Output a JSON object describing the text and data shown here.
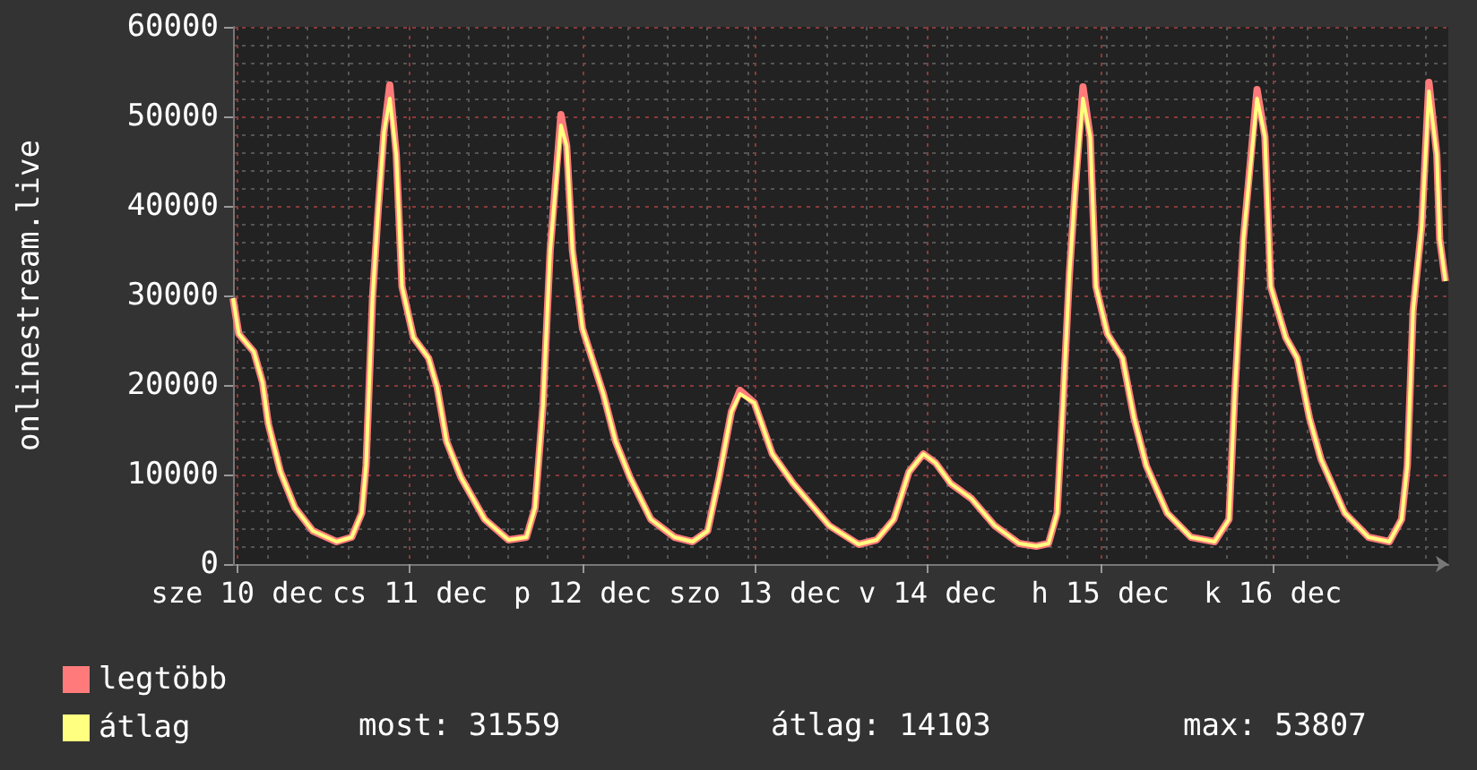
{
  "chart_data": {
    "type": "line",
    "ylabel": "onlinestream.live",
    "x": [
      "--12-09T23:24",
      "--12-10T00:12",
      "--12-10T02:18",
      "--12-10T03:30",
      "--12-10T04:18",
      "--12-10T06:00",
      "--12-10T08:00",
      "--12-10T10:30",
      "--12-10T13:48",
      "--12-10T15:54",
      "--12-10T17:18",
      "--12-10T17:54",
      "--12-10T18:48",
      "--12-10T19:36",
      "--12-10T20:24",
      "--12-10T21:12",
      "--12-10T22:06",
      "--12-10T22:54",
      "--12-11T00:30",
      "--12-11T02:36",
      "--12-11T03:48",
      "--12-11T05:06",
      "--12-11T07:06",
      "--12-11T10:24",
      "--12-11T13:42",
      "--12-11T16:12",
      "--12-11T17:24",
      "--12-11T18:30",
      "--12-11T19:30",
      "--12-11T21:00",
      "--12-11T21:48",
      "--12-11T22:36",
      "--12-12T00:00",
      "--12-12T02:54",
      "--12-12T04:36",
      "--12-12T06:36",
      "--12-12T09:30",
      "--12-12T12:48",
      "--12-12T15:18",
      "--12-12T17:24",
      "--12-12T19:00",
      "--12-12T20:42",
      "--12-12T21:54",
      "--12-12T23:54",
      "--12-13T02:24",
      "--12-13T05:18",
      "--12-13T10:18",
      "--12-13T14:24",
      "--12-13T16:54",
      "--12-13T19:18",
      "--12-13T21:24",
      "--12-13T23:24",
      "--12-14T01:06",
      "--12-14T03:12",
      "--12-14T06:06",
      "--12-14T09:18",
      "--12-14T12:42",
      "--12-14T15:06",
      "--12-14T16:48",
      "--12-14T18:00",
      "--12-14T18:48",
      "--12-14T19:42",
      "--12-14T20:30",
      "--12-14T21:36",
      "--12-14T22:36",
      "--12-14T23:24",
      "--12-15T01:00",
      "--12-15T03:06",
      "--12-15T04:42",
      "--12-15T06:24",
      "--12-15T09:18",
      "--12-15T12:36",
      "--12-15T15:54",
      "--12-15T17:54",
      "--12-15T18:42",
      "--12-15T19:54",
      "--12-15T21:48",
      "--12-15T22:54",
      "--12-15T23:42",
      "--12-16T01:48",
      "--12-16T03:24",
      "--12-16T05:06",
      "--12-16T06:42",
      "--12-16T10:00",
      "--12-16T13:18",
      "--12-16T16:12",
      "--12-16T17:54",
      "--12-16T18:42",
      "--12-16T19:30",
      "--12-16T20:42",
      "--12-16T21:42",
      "--12-16T22:48",
      "--12-16T23:12",
      "--12-17T00:00"
    ],
    "series": [
      {
        "name": "legtöbb",
        "color": "#ff7b7b",
        "values": [
          29700,
          25700,
          23700,
          20300,
          15700,
          10300,
          6300,
          3700,
          2500,
          3000,
          5700,
          11000,
          29700,
          39700,
          48300,
          53500,
          45700,
          31000,
          25300,
          23000,
          19700,
          13700,
          9700,
          5000,
          2700,
          3000,
          6300,
          17700,
          35000,
          50200,
          46700,
          35000,
          26300,
          19000,
          13700,
          9700,
          5000,
          3000,
          2500,
          3700,
          9700,
          17000,
          19400,
          18000,
          12300,
          9000,
          4300,
          2200,
          2700,
          5000,
          10300,
          12300,
          11300,
          9000,
          7300,
          4300,
          2300,
          2000,
          2300,
          5700,
          17700,
          32300,
          41700,
          53300,
          47700,
          31000,
          25700,
          23000,
          16300,
          11000,
          5700,
          3000,
          2500,
          5000,
          19000,
          36300,
          53000,
          47700,
          31000,
          25300,
          23000,
          16300,
          11700,
          5700,
          3000,
          2500,
          5000,
          11000,
          28300,
          37700,
          53800,
          45700,
          36300,
          31600
        ]
      },
      {
        "name": "átlag",
        "color": "#ffff80",
        "values": [
          29700,
          25700,
          23700,
          20300,
          15700,
          10300,
          6300,
          3700,
          2500,
          3000,
          5700,
          11000,
          29700,
          39700,
          48300,
          52000,
          45700,
          31000,
          25300,
          23000,
          19700,
          13700,
          9700,
          5000,
          2700,
          3000,
          6300,
          17700,
          35000,
          49000,
          46700,
          35000,
          26300,
          19000,
          13700,
          9700,
          5000,
          3000,
          2500,
          3700,
          9700,
          17000,
          19000,
          18000,
          12300,
          9000,
          4300,
          2200,
          2700,
          5000,
          10300,
          12300,
          11300,
          9000,
          7300,
          4300,
          2300,
          2000,
          2300,
          5700,
          17700,
          32300,
          41700,
          52000,
          47700,
          31000,
          25700,
          23000,
          16300,
          11000,
          5700,
          3000,
          2500,
          5000,
          19000,
          36300,
          52000,
          47700,
          31000,
          25300,
          23000,
          16300,
          11700,
          5700,
          3000,
          2500,
          5000,
          11000,
          28300,
          37700,
          52800,
          45700,
          36300,
          31600
        ]
      }
    ],
    "xlim": [
      "--12-09T23:24",
      "--12-17T00:24"
    ],
    "xticks": [
      {
        "value": "--12-10",
        "label": "sze 10 dec"
      },
      {
        "value": "--12-11",
        "label": "cs 11 dec"
      },
      {
        "value": "--12-12",
        "label": "p 12 dec"
      },
      {
        "value": "--12-13",
        "label": "szo 13 dec"
      },
      {
        "value": "--12-14",
        "label": "v 14 dec"
      },
      {
        "value": "--12-15",
        "label": "h 15 dec"
      },
      {
        "value": "--12-16",
        "label": "k 16 dec"
      }
    ],
    "ylim": [
      0,
      60000
    ],
    "yticks": [
      0,
      10000,
      20000,
      30000,
      40000,
      50000,
      60000
    ],
    "grid": true,
    "legend": "bottom left",
    "annotations": [
      "most: 31559",
      "átlag: 14103",
      "max: 53807"
    ]
  }
}
